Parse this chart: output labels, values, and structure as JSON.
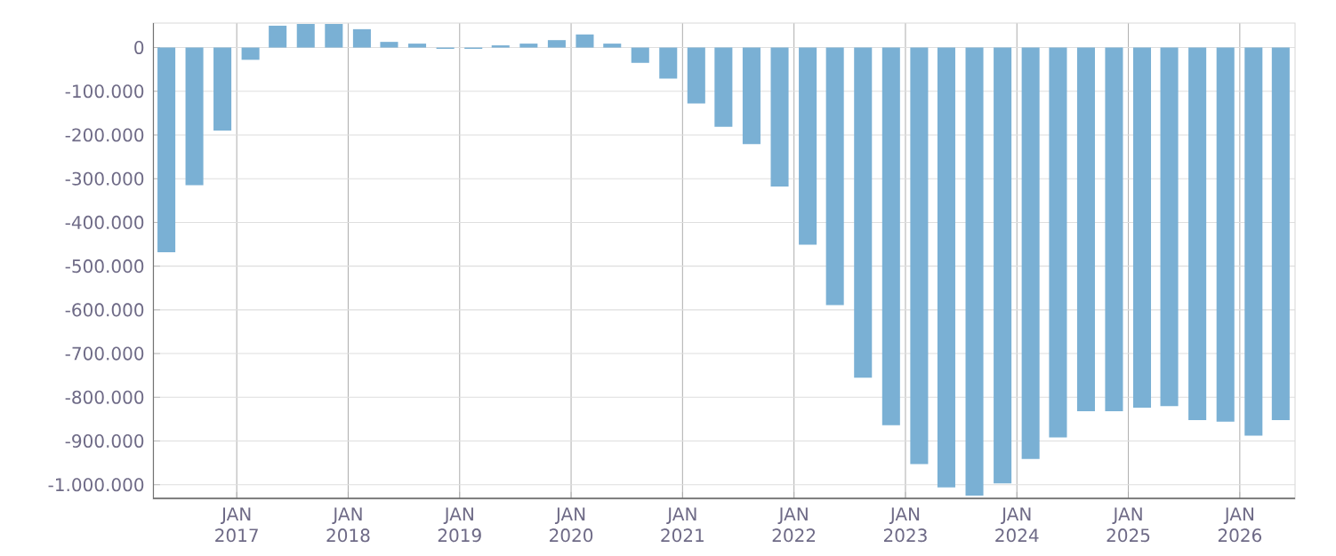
{
  "chart_data": {
    "type": "bar",
    "color": "#7ab0d4",
    "x": [
      "2016-05-15",
      "2016-08-15",
      "2016-11-15",
      "2017-02-15",
      "2017-05-15",
      "2017-08-15",
      "2017-11-15",
      "2018-02-15",
      "2018-05-15",
      "2018-08-15",
      "2018-11-15",
      "2019-02-15",
      "2019-05-15",
      "2019-08-15",
      "2019-11-15",
      "2020-02-15",
      "2020-05-15",
      "2020-08-15",
      "2020-11-15",
      "2021-02-15",
      "2021-05-15",
      "2021-08-15",
      "2021-11-15",
      "2022-02-15",
      "2022-05-15",
      "2022-08-15",
      "2022-11-15",
      "2023-02-15",
      "2023-05-15",
      "2023-08-15",
      "2023-11-15",
      "2024-02-15",
      "2024-05-15",
      "2024-08-15",
      "2024-11-15",
      "2025-02-15",
      "2025-05-15",
      "2025-08-15",
      "2025-11-15",
      "2026-02-15",
      "2026-05-15"
    ],
    "values": [
      -468000,
      -315000,
      -190000,
      -28000,
      50000,
      54000,
      54000,
      42000,
      13000,
      9000,
      -3000,
      -3000,
      5000,
      9000,
      17000,
      30000,
      9000,
      -35000,
      -71000,
      -128000,
      -181000,
      -221000,
      -318000,
      -451000,
      -589000,
      -755000,
      -864000,
      -953000,
      -1006000,
      -1025000,
      -997000,
      -941000,
      -892000,
      -832000,
      -832000,
      -824000,
      -820000,
      -852000,
      -856000,
      -888000,
      -852000
    ],
    "xlim": [
      "2016-04",
      "2026-07"
    ],
    "ylim": [
      -1033000,
      56000
    ],
    "xticks": [
      {
        "value": "2017-01",
        "label": "JAN 2017"
      },
      {
        "value": "2018-01",
        "label": "JAN 2018"
      },
      {
        "value": "2019-01",
        "label": "JAN 2019"
      },
      {
        "value": "2020-01",
        "label": "JAN 2020"
      },
      {
        "value": "2021-01",
        "label": "JAN 2021"
      },
      {
        "value": "2022-01",
        "label": "JAN 2022"
      },
      {
        "value": "2023-01",
        "label": "JAN 2023"
      },
      {
        "value": "2024-01",
        "label": "JAN 2024"
      },
      {
        "value": "2025-01",
        "label": "JAN 2025"
      },
      {
        "value": "2026-01",
        "label": "JAN 2026"
      }
    ],
    "yticks": [
      {
        "value": -1000000,
        "label": "-1.000.000"
      },
      {
        "value": -900000,
        "label": "-900.000"
      },
      {
        "value": -800000,
        "label": "-800.000"
      },
      {
        "value": -700000,
        "label": "-700.000"
      },
      {
        "value": -600000,
        "label": "-600.000"
      },
      {
        "value": -500000,
        "label": "-500.000"
      },
      {
        "value": -400000,
        "label": "-400.000"
      },
      {
        "value": -300000,
        "label": "-300.000"
      },
      {
        "value": -200000,
        "label": "-200.000"
      },
      {
        "value": -100000,
        "label": "-100.000"
      },
      0
    ],
    "grid": true
  }
}
